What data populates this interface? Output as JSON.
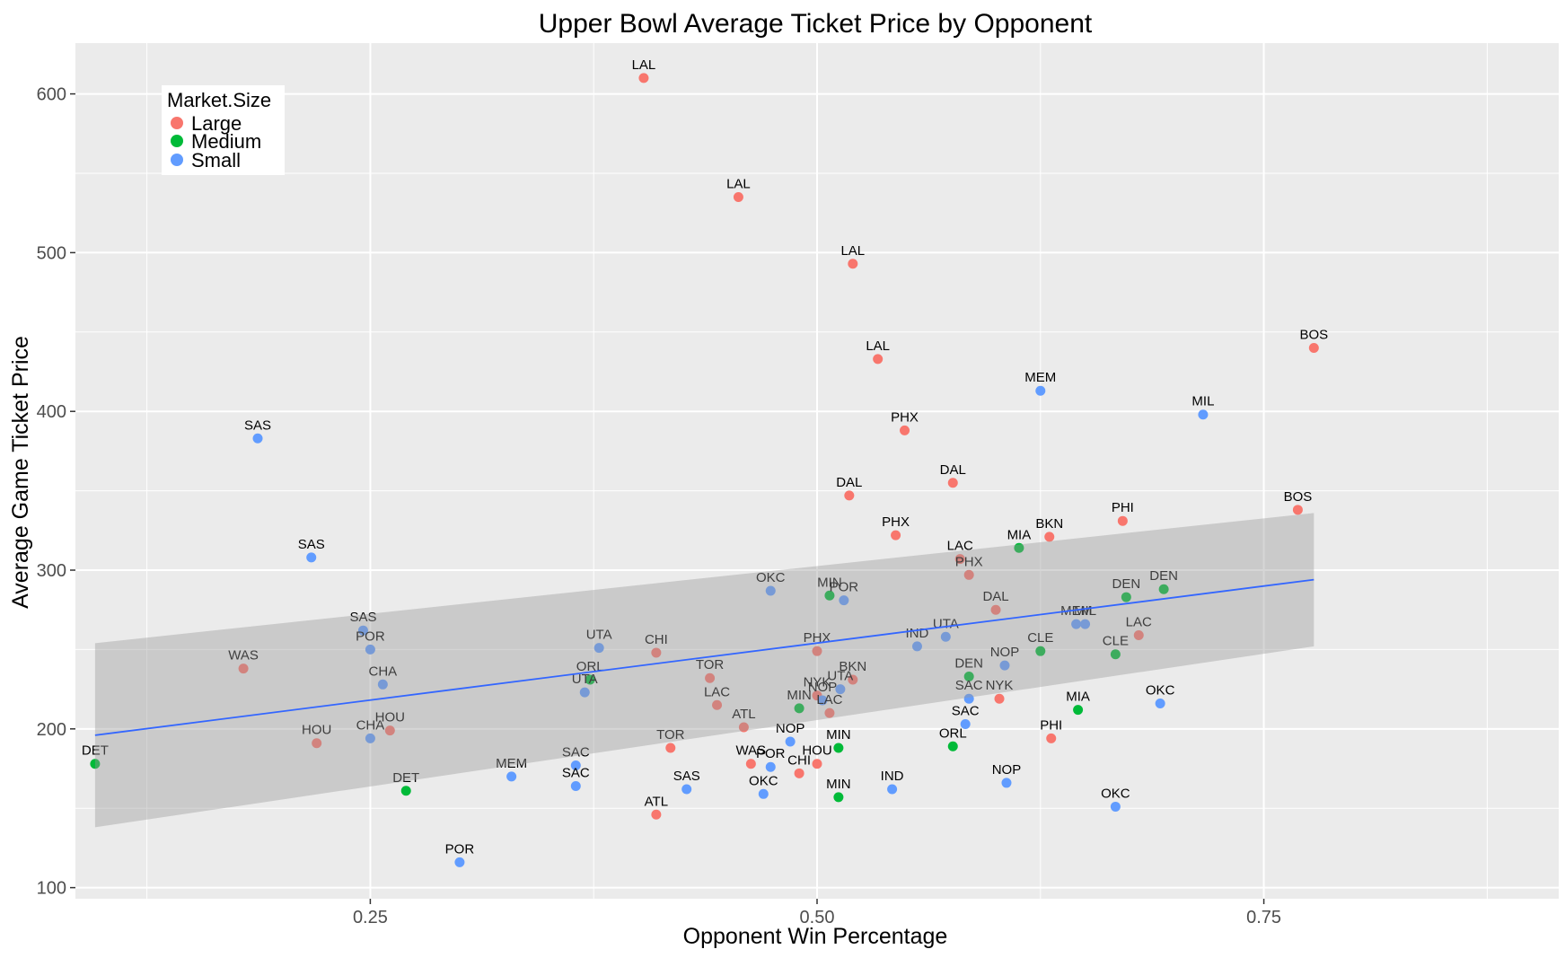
{
  "chart_data": {
    "type": "scatter",
    "title": "Upper Bowl Average Ticket Price by Opponent",
    "xlabel": "Opponent Win Percentage",
    "ylabel": "Average Game Ticket Price",
    "xlim": [
      0.085,
      0.915
    ],
    "ylim": [
      93,
      632
    ],
    "x_ticks": [
      0.25,
      0.5,
      0.75
    ],
    "x_tick_labels": [
      "0.25",
      "0.50",
      "0.75"
    ],
    "y_ticks": [
      100,
      200,
      300,
      400,
      500,
      600
    ],
    "y_tick_labels": [
      "100",
      "200",
      "300",
      "400",
      "500",
      "600"
    ],
    "grid": true,
    "legend": {
      "title": "Market.Size",
      "placement": "top-left",
      "entries": [
        {
          "name": "Large",
          "color": "#F8766D"
        },
        {
          "name": "Medium",
          "color": "#00BA38"
        },
        {
          "name": "Small",
          "color": "#619CFF"
        }
      ]
    },
    "trend": {
      "method": "linear",
      "color": "#3366FF",
      "band_color": "#999999",
      "x": [
        0.096,
        0.778
      ],
      "y": [
        196,
        294
      ],
      "band_lower": [
        138,
        252
      ],
      "band_upper": [
        254,
        336
      ]
    },
    "points": [
      {
        "label": "LAL",
        "x": 0.403,
        "y": 610,
        "group": "Large"
      },
      {
        "label": "LAL",
        "x": 0.456,
        "y": 535,
        "group": "Large"
      },
      {
        "label": "LAL",
        "x": 0.52,
        "y": 493,
        "group": "Large"
      },
      {
        "label": "LAL",
        "x": 0.534,
        "y": 433,
        "group": "Large"
      },
      {
        "label": "BOS",
        "x": 0.778,
        "y": 440,
        "group": "Large"
      },
      {
        "label": "BOS",
        "x": 0.769,
        "y": 338,
        "group": "Large"
      },
      {
        "label": "MEM",
        "x": 0.625,
        "y": 413,
        "group": "Small"
      },
      {
        "label": "MIL",
        "x": 0.716,
        "y": 398,
        "group": "Small"
      },
      {
        "label": "PHX",
        "x": 0.549,
        "y": 388,
        "group": "Large"
      },
      {
        "label": "SAS",
        "x": 0.187,
        "y": 383,
        "group": "Small"
      },
      {
        "label": "DAL",
        "x": 0.576,
        "y": 355,
        "group": "Large"
      },
      {
        "label": "DAL",
        "x": 0.518,
        "y": 347,
        "group": "Large"
      },
      {
        "label": "PHI",
        "x": 0.671,
        "y": 331,
        "group": "Large"
      },
      {
        "label": "PHX",
        "x": 0.544,
        "y": 322,
        "group": "Large"
      },
      {
        "label": "BKN",
        "x": 0.63,
        "y": 321,
        "group": "Large"
      },
      {
        "label": "MIA",
        "x": 0.613,
        "y": 314,
        "group": "Medium"
      },
      {
        "label": "LAC",
        "x": 0.58,
        "y": 307,
        "group": "Large"
      },
      {
        "label": "SAS",
        "x": 0.217,
        "y": 308,
        "group": "Small"
      },
      {
        "label": "PHX",
        "x": 0.585,
        "y": 297,
        "group": "Large"
      },
      {
        "label": "OKC",
        "x": 0.474,
        "y": 287,
        "group": "Small"
      },
      {
        "label": "MIN",
        "x": 0.507,
        "y": 284,
        "group": "Medium"
      },
      {
        "label": "POR",
        "x": 0.515,
        "y": 281,
        "group": "Small"
      },
      {
        "label": "DEN",
        "x": 0.673,
        "y": 283,
        "group": "Medium"
      },
      {
        "label": "DEN",
        "x": 0.694,
        "y": 288,
        "group": "Medium"
      },
      {
        "label": "DAL",
        "x": 0.6,
        "y": 275,
        "group": "Large"
      },
      {
        "label": "MEM",
        "x": 0.645,
        "y": 266,
        "group": "Small"
      },
      {
        "label": "MIL",
        "x": 0.65,
        "y": 266,
        "group": "Small"
      },
      {
        "label": "SAS",
        "x": 0.246,
        "y": 262,
        "group": "Small"
      },
      {
        "label": "UTA",
        "x": 0.572,
        "y": 258,
        "group": "Small"
      },
      {
        "label": "LAC",
        "x": 0.68,
        "y": 259,
        "group": "Large"
      },
      {
        "label": "IND",
        "x": 0.556,
        "y": 252,
        "group": "Small"
      },
      {
        "label": "UTA",
        "x": 0.378,
        "y": 251,
        "group": "Small"
      },
      {
        "label": "POR",
        "x": 0.25,
        "y": 250,
        "group": "Small"
      },
      {
        "label": "CLE",
        "x": 0.625,
        "y": 249,
        "group": "Medium"
      },
      {
        "label": "CHI",
        "x": 0.41,
        "y": 248,
        "group": "Large"
      },
      {
        "label": "PHX",
        "x": 0.5,
        "y": 249,
        "group": "Large"
      },
      {
        "label": "CLE",
        "x": 0.667,
        "y": 247,
        "group": "Medium"
      },
      {
        "label": "NOP",
        "x": 0.605,
        "y": 240,
        "group": "Small"
      },
      {
        "label": "WAS",
        "x": 0.179,
        "y": 238,
        "group": "Large"
      },
      {
        "label": "DEN",
        "x": 0.585,
        "y": 233,
        "group": "Medium"
      },
      {
        "label": "TOR",
        "x": 0.44,
        "y": 232,
        "group": "Large"
      },
      {
        "label": "BKN",
        "x": 0.52,
        "y": 231,
        "group": "Large"
      },
      {
        "label": "ORL",
        "x": 0.373,
        "y": 231,
        "group": "Medium"
      },
      {
        "label": "CHA",
        "x": 0.257,
        "y": 228,
        "group": "Small"
      },
      {
        "label": "UTA",
        "x": 0.513,
        "y": 225,
        "group": "Small"
      },
      {
        "label": "UTA",
        "x": 0.37,
        "y": 223,
        "group": "Small"
      },
      {
        "label": "NYK",
        "x": 0.5,
        "y": 221,
        "group": "Large"
      },
      {
        "label": "NOP",
        "x": 0.503,
        "y": 218,
        "group": "Small"
      },
      {
        "label": "SAC",
        "x": 0.585,
        "y": 219,
        "group": "Small"
      },
      {
        "label": "NYK",
        "x": 0.602,
        "y": 219,
        "group": "Large"
      },
      {
        "label": "OKC",
        "x": 0.692,
        "y": 216,
        "group": "Small"
      },
      {
        "label": "LAC",
        "x": 0.444,
        "y": 215,
        "group": "Large"
      },
      {
        "label": "MIN",
        "x": 0.49,
        "y": 213,
        "group": "Medium"
      },
      {
        "label": "MIA",
        "x": 0.646,
        "y": 212,
        "group": "Medium"
      },
      {
        "label": "LAC",
        "x": 0.507,
        "y": 210,
        "group": "Large"
      },
      {
        "label": "SAC",
        "x": 0.583,
        "y": 203,
        "group": "Small"
      },
      {
        "label": "ATL",
        "x": 0.459,
        "y": 201,
        "group": "Large"
      },
      {
        "label": "HOU",
        "x": 0.261,
        "y": 199,
        "group": "Large"
      },
      {
        "label": "PHI",
        "x": 0.631,
        "y": 194,
        "group": "Large"
      },
      {
        "label": "CHA",
        "x": 0.25,
        "y": 194,
        "group": "Small"
      },
      {
        "label": "NOP",
        "x": 0.485,
        "y": 192,
        "group": "Small"
      },
      {
        "label": "HOU",
        "x": 0.22,
        "y": 191,
        "group": "Large"
      },
      {
        "label": "ORL",
        "x": 0.576,
        "y": 189,
        "group": "Medium"
      },
      {
        "label": "TOR",
        "x": 0.418,
        "y": 188,
        "group": "Large"
      },
      {
        "label": "MIN",
        "x": 0.512,
        "y": 188,
        "group": "Medium"
      },
      {
        "label": "HOU",
        "x": 0.5,
        "y": 178,
        "group": "Large"
      },
      {
        "label": "DET",
        "x": 0.096,
        "y": 178,
        "group": "Medium"
      },
      {
        "label": "WAS",
        "x": 0.463,
        "y": 178,
        "group": "Large"
      },
      {
        "label": "SAC",
        "x": 0.365,
        "y": 177,
        "group": "Small"
      },
      {
        "label": "POR",
        "x": 0.474,
        "y": 176,
        "group": "Small"
      },
      {
        "label": "CHI",
        "x": 0.49,
        "y": 172,
        "group": "Large"
      },
      {
        "label": "MEM",
        "x": 0.329,
        "y": 170,
        "group": "Small"
      },
      {
        "label": "NOP",
        "x": 0.606,
        "y": 166,
        "group": "Small"
      },
      {
        "label": "SAC",
        "x": 0.365,
        "y": 164,
        "group": "Small"
      },
      {
        "label": "SAS",
        "x": 0.427,
        "y": 162,
        "group": "Small"
      },
      {
        "label": "IND",
        "x": 0.542,
        "y": 162,
        "group": "Small"
      },
      {
        "label": "DET",
        "x": 0.27,
        "y": 161,
        "group": "Medium"
      },
      {
        "label": "OKC",
        "x": 0.47,
        "y": 159,
        "group": "Small"
      },
      {
        "label": "MIN",
        "x": 0.512,
        "y": 157,
        "group": "Medium"
      },
      {
        "label": "OKC",
        "x": 0.667,
        "y": 151,
        "group": "Small"
      },
      {
        "label": "ATL",
        "x": 0.41,
        "y": 146,
        "group": "Large"
      },
      {
        "label": "POR",
        "x": 0.3,
        "y": 116,
        "group": "Small"
      }
    ]
  }
}
